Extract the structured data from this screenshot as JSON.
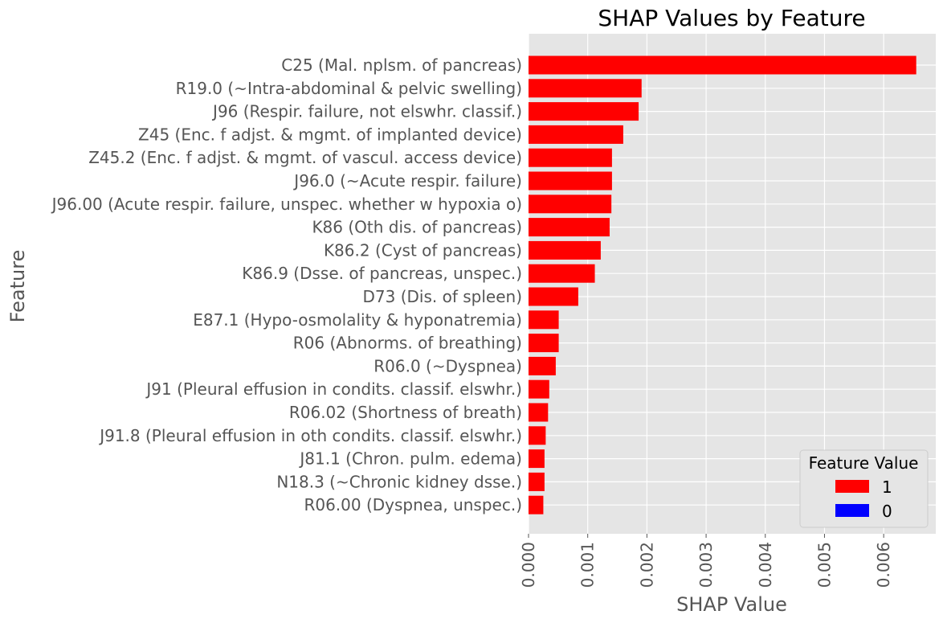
{
  "chart_data": {
    "type": "bar",
    "orientation": "horizontal",
    "title": "SHAP Values by Feature",
    "xlabel": "SHAP Value",
    "ylabel": "Feature",
    "xlim": [
      0.0,
      0.00688
    ],
    "xticks": [
      0.0,
      0.001,
      0.002,
      0.003,
      0.004,
      0.005,
      0.006
    ],
    "xtick_labels": [
      "0.000",
      "0.001",
      "0.002",
      "0.003",
      "0.004",
      "0.005",
      "0.006"
    ],
    "grid": true,
    "legend": {
      "title": "Feature Value",
      "placement": "bottom-right",
      "entries": [
        {
          "label": "1",
          "color": "#ff0000"
        },
        {
          "label": "0",
          "color": "#0000ff"
        }
      ]
    },
    "categories": [
      "C25 (Mal. nplsm. of pancreas)",
      "R19.0 (~Intra-abdominal & pelvic swelling)",
      "J96 (Respir. failure, not elswhr. classif.)",
      "Z45 (Enc. f adjst. & mgmt. of implanted device)",
      "Z45.2 (Enc. f adjst. & mgmt. of vascul. access device)",
      "J96.0 (~Acute respir. failure)",
      "J96.00 (Acute respir. failure, unspec. whether w hypoxia o)",
      "K86 (Oth dis. of pancreas)",
      "K86.2 (Cyst of pancreas)",
      "K86.9 (Dsse. of pancreas, unspec.)",
      "D73 (Dis. of spleen)",
      "E87.1 (Hypo-osmolality & hyponatremia)",
      "R06 (Abnorms. of breathing)",
      "R06.0 (~Dyspnea)",
      "J91 (Pleural effusion in condits. classif. elswhr.)",
      "R06.02 (Shortness of breath)",
      "J91.8 (Pleural effusion in oth condits. classif. elswhr.)",
      "J81.1 (Chron. pulm. edema)",
      "N18.3 (~Chronic kidney dsse.)",
      "R06.00 (Dyspnea, unspec.)"
    ],
    "values": [
      0.00655,
      0.00191,
      0.00186,
      0.0016,
      0.00141,
      0.00141,
      0.0014,
      0.00137,
      0.00122,
      0.00112,
      0.00084,
      0.00051,
      0.00051,
      0.00046,
      0.00035,
      0.00033,
      0.00029,
      0.00027,
      0.00027,
      0.00025
    ],
    "feature_values": [
      "1",
      "1",
      "1",
      "1",
      "1",
      "1",
      "1",
      "1",
      "1",
      "1",
      "1",
      "1",
      "1",
      "1",
      "1",
      "1",
      "1",
      "1",
      "1",
      "1"
    ],
    "colors": {
      "1": "#ff0000",
      "0": "#0000ff"
    },
    "background": "#e5e5e5",
    "grid_color": "#ffffff"
  }
}
